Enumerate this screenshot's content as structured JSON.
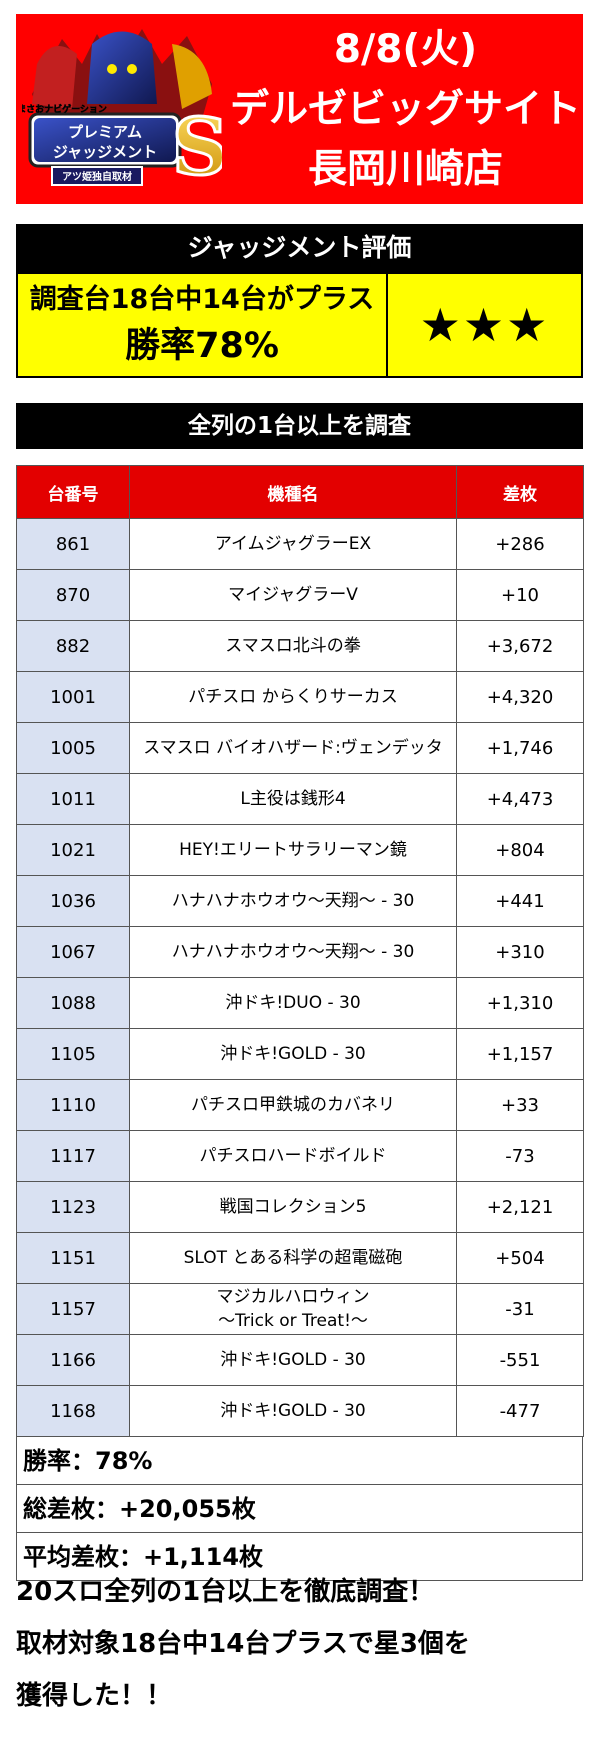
{
  "header": {
    "logo_text": "プレミアムジャッジメントS",
    "logo_tagline": "まさおナビゲーション",
    "logo_badge": "アツ姫独自取材",
    "date": "8/8(火)",
    "store_line1": "デルゼビッグサイト",
    "store_line2": "長岡川崎店",
    "bg_color": "#ff0000"
  },
  "judgment": {
    "title": "ジャッジメント評価",
    "line1": "調査台18台中14台がプラス",
    "line2": "勝率78%",
    "stars": "★★★",
    "box_color": "#ffff00"
  },
  "section_title": "全列の1台以上を調査",
  "table": {
    "headers": [
      "台番号",
      "機種名",
      "差枚"
    ],
    "rows": [
      {
        "no": "861",
        "name": "アイムジャグラーEX",
        "diff": "+286"
      },
      {
        "no": "870",
        "name": "マイジャグラーV",
        "diff": "+10"
      },
      {
        "no": "882",
        "name": "スマスロ北斗の拳",
        "diff": "+3,672"
      },
      {
        "no": "1001",
        "name": "パチスロ からくりサーカス",
        "diff": "+4,320"
      },
      {
        "no": "1005",
        "name": "スマスロ バイオハザード:ヴェンデッタ",
        "diff": "+1,746"
      },
      {
        "no": "1011",
        "name": "L主役は銭形4",
        "diff": "+4,473"
      },
      {
        "no": "1021",
        "name": "HEY!エリートサラリーマン鏡",
        "diff": "+804"
      },
      {
        "no": "1036",
        "name": "ハナハナホウオウ～天翔～ - 30",
        "diff": "+441"
      },
      {
        "no": "1067",
        "name": "ハナハナホウオウ～天翔～ - 30",
        "diff": "+310"
      },
      {
        "no": "1088",
        "name": "沖ドキ!DUO - 30",
        "diff": "+1,310"
      },
      {
        "no": "1105",
        "name": "沖ドキ!GOLD - 30",
        "diff": "+1,157"
      },
      {
        "no": "1110",
        "name": "パチスロ甲鉄城のカバネリ",
        "diff": "+33"
      },
      {
        "no": "1117",
        "name": "パチスロハードボイルド",
        "diff": "-73"
      },
      {
        "no": "1123",
        "name": "戦国コレクション5",
        "diff": "+2,121"
      },
      {
        "no": "1151",
        "name": "SLOT とある科学の超電磁砲",
        "diff": "+504"
      },
      {
        "no": "1157",
        "name": "マジカルハロウィン",
        "name2": "～Trick or Treat!～",
        "diff": "-31"
      },
      {
        "no": "1166",
        "name": "沖ドキ!GOLD - 30",
        "diff": "-551"
      },
      {
        "no": "1168",
        "name": "沖ドキ!GOLD - 30",
        "diff": "-477"
      }
    ],
    "header_color": "#e30000",
    "number_cell_color": "#d9e1f2"
  },
  "summary": {
    "win_rate": "勝率：78%",
    "total": "総差枚：+20,055枚",
    "average": "平均差枚：+1,114枚"
  },
  "footer": {
    "line1": "20スロ全列の1台以上を徹底調査！",
    "line2": "取材対象18台中14台プラスで星3個を",
    "line3": "獲得した！！"
  }
}
